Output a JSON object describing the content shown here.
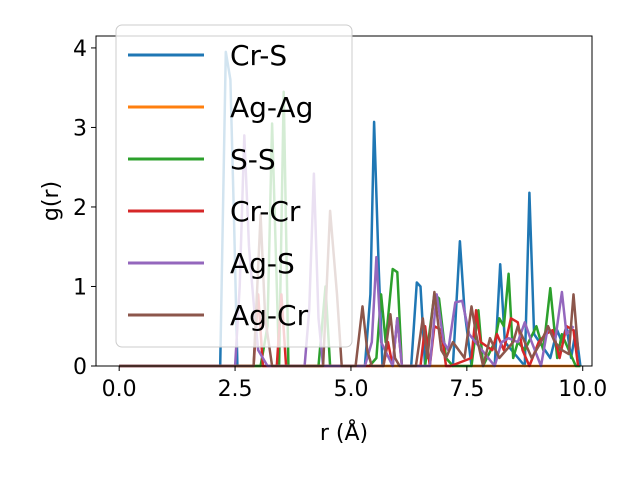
{
  "chart_data": {
    "type": "line",
    "xlabel": "r (Å)",
    "ylabel": "g(r)",
    "xlim": [
      -0.5,
      10.2
    ],
    "ylim": [
      0,
      4.15
    ],
    "xticks": [
      0.0,
      2.5,
      5.0,
      7.5,
      10.0
    ],
    "xtick_labels": [
      "0.0",
      "2.5",
      "5.0",
      "7.5",
      "10.0"
    ],
    "yticks": [
      0,
      1,
      2,
      3,
      4
    ],
    "ytick_labels": [
      "0",
      "1",
      "2",
      "3",
      "4"
    ],
    "grid": false,
    "legend_position": "top-left",
    "series": [
      {
        "name": "Cr-S",
        "color": "#1f77b4",
        "x": [
          0,
          2.18,
          2.3,
          2.4,
          2.48,
          2.55,
          5.3,
          5.42,
          5.5,
          5.6,
          5.68,
          6.3,
          6.42,
          6.5,
          6.6,
          7.2,
          7.35,
          7.45,
          7.6,
          8.1,
          8.22,
          8.32,
          8.75,
          8.85,
          8.95,
          9.3,
          9.45,
          9.55,
          9.65,
          9.75,
          9.85,
          9.95
        ],
        "y": [
          0,
          0,
          3.95,
          3.6,
          1.8,
          0,
          0,
          0.9,
          3.07,
          1.2,
          0,
          0,
          1.05,
          1.0,
          0,
          0,
          1.57,
          0.7,
          0,
          0,
          1.28,
          0.3,
          0,
          2.18,
          0.4,
          0.1,
          0.45,
          0.3,
          0.5,
          0.1,
          0.45,
          0
        ]
      },
      {
        "name": "Ag-Ag",
        "color": "#ff7f0e",
        "x": [
          0,
          9.95
        ],
        "y": [
          0,
          0
        ]
      },
      {
        "name": "S-S",
        "color": "#2ca02c",
        "x": [
          0,
          3.05,
          3.2,
          3.3,
          3.45,
          3.55,
          3.65,
          4.0,
          4.3,
          4.45,
          4.55,
          5.4,
          5.55,
          5.65,
          5.75,
          5.9,
          6.0,
          6.1,
          6.6,
          6.8,
          6.9,
          7.05,
          7.2,
          7.6,
          7.75,
          7.85,
          8.1,
          8.2,
          8.3,
          8.4,
          8.5,
          8.6,
          8.75,
          9.0,
          9.15,
          9.3,
          9.45,
          9.55,
          9.7,
          9.85,
          9.95
        ],
        "y": [
          0,
          0,
          0.5,
          3.05,
          0,
          3.45,
          0,
          0,
          0,
          1.0,
          0,
          0,
          0.1,
          0.9,
          0.3,
          1.22,
          1.18,
          0,
          0,
          0.9,
          0.85,
          0.1,
          0,
          0,
          0.7,
          0.0,
          0.3,
          0.6,
          0.5,
          1.16,
          0.1,
          0.3,
          0.2,
          0.5,
          0.2,
          0.98,
          0.1,
          0.4,
          0.2,
          0.0,
          0
        ]
      },
      {
        "name": "Cr-Cr",
        "color": "#d62728",
        "x": [
          0,
          2.9,
          3.0,
          3.1,
          3.2,
          3.4,
          3.5,
          3.6,
          5.7,
          5.8,
          5.9,
          6.0,
          6.1,
          6.5,
          6.6,
          6.7,
          6.8,
          6.95,
          7.05,
          7.15,
          7.6,
          7.7,
          7.8,
          8.05,
          8.15,
          8.3,
          8.45,
          8.6,
          8.7,
          8.85,
          9.05,
          9.2,
          9.35,
          9.5,
          9.65,
          9.8,
          9.9
        ],
        "y": [
          0,
          0,
          0.9,
          0,
          0,
          0,
          0.9,
          0,
          0,
          0.3,
          0,
          0.6,
          0,
          0,
          0.5,
          0,
          0.5,
          0.45,
          0,
          0,
          0.1,
          0.7,
          0.3,
          0.2,
          0.4,
          0.2,
          0.6,
          0.55,
          0.2,
          0.0,
          0.3,
          0.4,
          0.45,
          0.1,
          0.5,
          0.45,
          0
        ]
      },
      {
        "name": "Ag-S",
        "color": "#9467bd",
        "x": [
          0,
          2.5,
          2.6,
          2.7,
          2.8,
          2.9,
          3.0,
          3.2,
          4.0,
          4.1,
          4.2,
          4.3,
          4.4,
          5.3,
          5.45,
          5.55,
          5.65,
          5.9,
          6.0,
          6.1,
          6.7,
          6.85,
          7.0,
          7.1,
          7.25,
          7.4,
          7.55,
          8.1,
          8.25,
          8.4,
          8.6,
          8.75,
          8.9,
          9.1,
          9.25,
          9.4,
          9.55,
          9.65,
          9.8
        ],
        "y": [
          0,
          0,
          1.0,
          2.9,
          1.5,
          0.8,
          0.2,
          0,
          0,
          0.7,
          2.42,
          0.6,
          0,
          0,
          0.3,
          1.37,
          0.3,
          0,
          0.6,
          0,
          0,
          0.9,
          0.3,
          0.2,
          0.8,
          0.82,
          0.4,
          0,
          0.3,
          0.35,
          0.3,
          0.55,
          0.3,
          0.0,
          0.5,
          0.3,
          0.93,
          0.4,
          0.5
        ]
      },
      {
        "name": "Ag-Cr",
        "color": "#8c564b",
        "x": [
          0,
          2.9,
          3.05,
          3.15,
          3.3,
          4.4,
          4.55,
          4.7,
          4.8,
          5.1,
          5.25,
          5.35,
          5.45,
          5.7,
          5.85,
          5.95,
          6.05,
          6.4,
          6.55,
          6.65,
          6.8,
          6.95,
          7.05,
          7.2,
          7.45,
          7.6,
          7.7,
          7.85,
          8.0,
          8.2,
          8.35,
          8.5,
          8.6,
          8.75,
          8.9,
          9.1,
          9.25,
          9.4,
          9.55,
          9.7,
          9.8,
          9.9
        ],
        "y": [
          0,
          0,
          1.9,
          0.6,
          0,
          0,
          1.95,
          0.9,
          0,
          0,
          0.75,
          0.2,
          0,
          0,
          0.65,
          0.1,
          0,
          0,
          0.6,
          0.1,
          0.93,
          0.2,
          0.1,
          0.3,
          0.1,
          0.75,
          0.4,
          0.0,
          0.35,
          0.1,
          0.2,
          0.3,
          0.5,
          0.3,
          0.1,
          0.3,
          0.5,
          0.3,
          0.2,
          0.15,
          0.9,
          0.2
        ]
      }
    ]
  }
}
